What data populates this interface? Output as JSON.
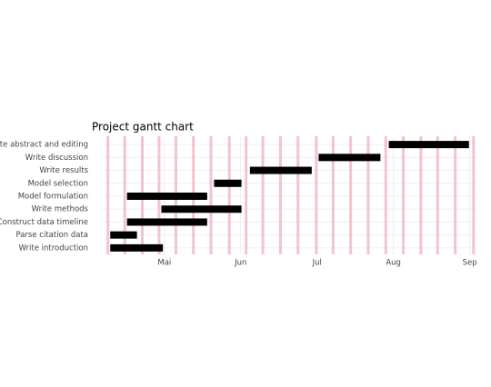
{
  "chart_data": {
    "type": "gantt",
    "title": "Project gantt chart",
    "tasks": [
      {
        "name": "Write abstract and editing",
        "start": 7.94,
        "end": 8.99
      },
      {
        "name": "Write discussion",
        "start": 7.02,
        "end": 7.83
      },
      {
        "name": "Write results",
        "start": 6.12,
        "end": 6.93
      },
      {
        "name": "Model selection",
        "start": 5.65,
        "end": 6.01
      },
      {
        "name": "Model formulation",
        "start": 4.51,
        "end": 5.56
      },
      {
        "name": "Write methods",
        "start": 4.96,
        "end": 6.01
      },
      {
        "name": "Construct data timeline",
        "start": 4.51,
        "end": 5.56
      },
      {
        "name": "Parse citation data",
        "start": 4.29,
        "end": 4.64
      },
      {
        "name": "Write introduction",
        "start": 4.29,
        "end": 4.98
      }
    ],
    "color": "#000000",
    "xlim": [
      4.18,
      9.1
    ],
    "xticks": [
      {
        "value": 5,
        "label": "Mai"
      },
      {
        "value": 6,
        "label": "Jun"
      },
      {
        "value": 7,
        "label": "Jul"
      },
      {
        "value": 8,
        "label": "Aug"
      },
      {
        "value": 9,
        "label": "Sep"
      }
    ],
    "week_lines": [
      4.26,
      4.48,
      4.71,
      4.93,
      5.15,
      5.38,
      5.61,
      5.85,
      6.07,
      6.29,
      6.52,
      6.75,
      6.99,
      7.21,
      7.44,
      7.67,
      7.9,
      8.13,
      8.36,
      8.58,
      8.81,
      9.05
    ],
    "week_line_color": "#f2c4cc",
    "grid": true
  }
}
